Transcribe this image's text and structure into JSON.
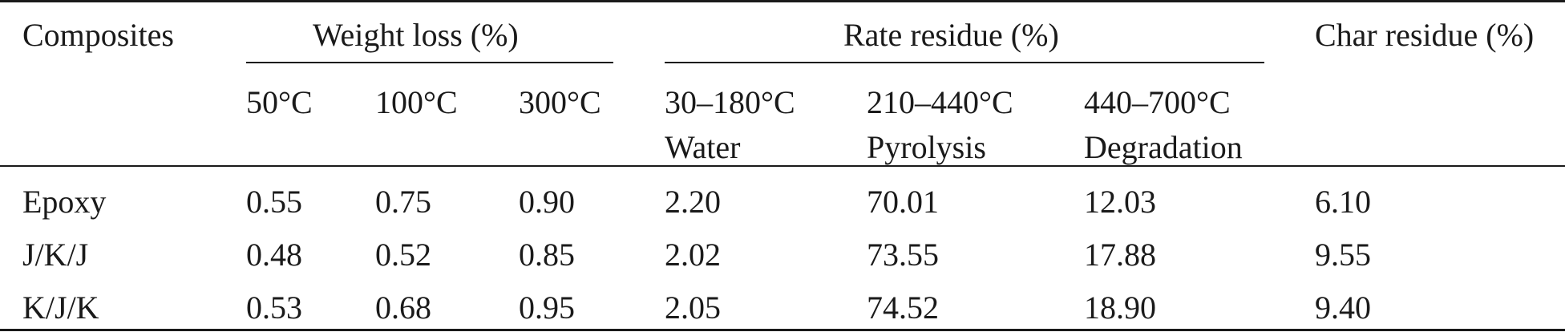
{
  "table": {
    "header": {
      "composites": "Composites",
      "weight_loss": "Weight loss (%)",
      "rate_residue": "Rate residue (%)",
      "char_residue": "Char residue (%)",
      "sub": {
        "t50": "50°C",
        "t100": "100°C",
        "t300": "300°C",
        "r1_range": "30–180°C",
        "r1_stage": "Water",
        "r2_range": "210–440°C",
        "r2_stage": "Pyrolysis",
        "r3_range": "440–700°C",
        "r3_stage": "Degradation"
      }
    },
    "rows": [
      {
        "name": "Epoxy",
        "wl50": "0.55",
        "wl100": "0.75",
        "wl300": "0.90",
        "rr1": "2.20",
        "rr2": "70.01",
        "rr3": "12.03",
        "char": "6.10"
      },
      {
        "name": "J/K/J",
        "wl50": "0.48",
        "wl100": "0.52",
        "wl300": "0.85",
        "rr1": "2.02",
        "rr2": "73.55",
        "rr3": "17.88",
        "char": "9.55"
      },
      {
        "name": "K/J/K",
        "wl50": "0.53",
        "wl100": "0.68",
        "wl300": "0.95",
        "rr1": "2.05",
        "rr2": "74.52",
        "rr3": "18.90",
        "char": "9.40"
      }
    ]
  }
}
